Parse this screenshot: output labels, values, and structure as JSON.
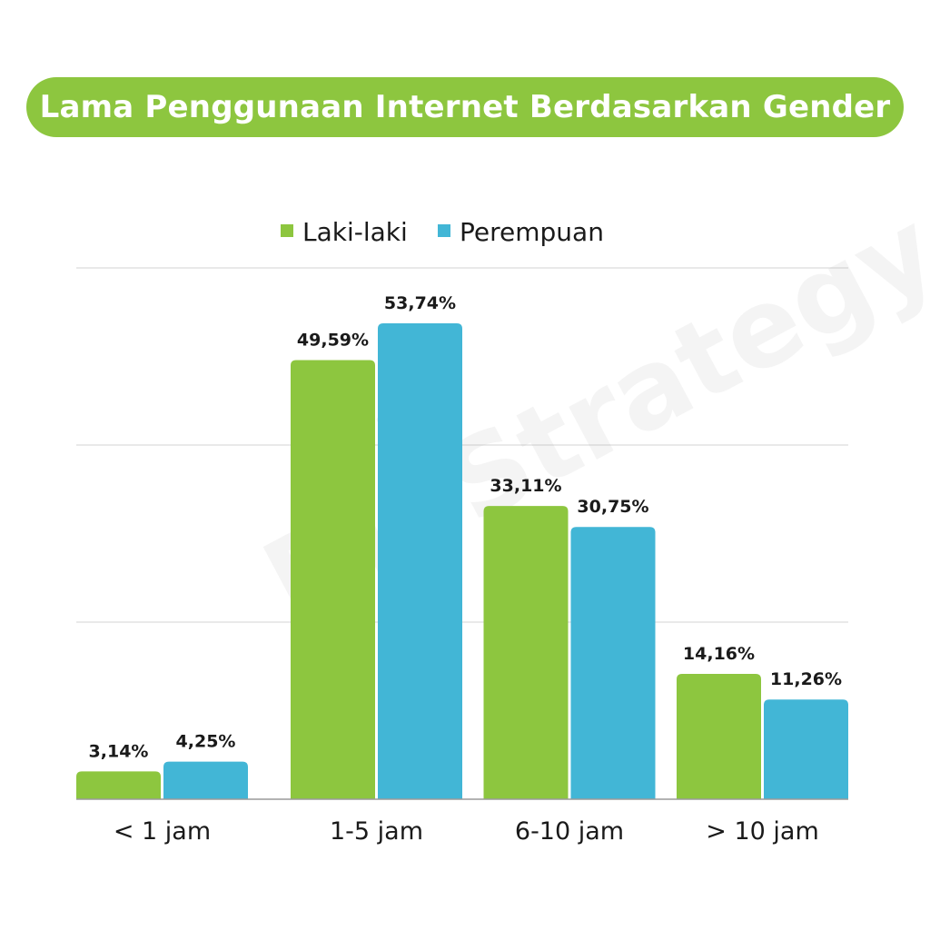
{
  "header": {
    "title": "Lama Penggunaan Internet Berdasarkan Gender"
  },
  "watermark": {
    "text": "DipStrategy"
  },
  "colors": {
    "title_bg": "#8dc63f",
    "series_1": "#8dc63f",
    "series_2": "#42b6d6",
    "grid": "#e2e2e2",
    "axis": "#9a9a9a"
  },
  "chart_data": {
    "type": "bar",
    "title": "Lama Penggunaan Internet Berdasarkan Gender",
    "xlabel": "",
    "ylabel": "",
    "categories": [
      "< 1 jam",
      "1-5 jam",
      "6-10 jam",
      "> 10 jam"
    ],
    "series": [
      {
        "name": "Laki-laki",
        "values": [
          3.14,
          49.59,
          33.11,
          14.16
        ],
        "labels": [
          "3,14%",
          "49,59%",
          "33,11%",
          "14,16%"
        ]
      },
      {
        "name": "Perempuan",
        "values": [
          4.25,
          53.74,
          30.75,
          11.26
        ],
        "labels": [
          "4,25%",
          "53,74%",
          "30,75%",
          "11,26%"
        ]
      }
    ],
    "ylim": [
      0,
      60
    ],
    "grid": true,
    "legend": "top-center",
    "data_labels": true
  }
}
